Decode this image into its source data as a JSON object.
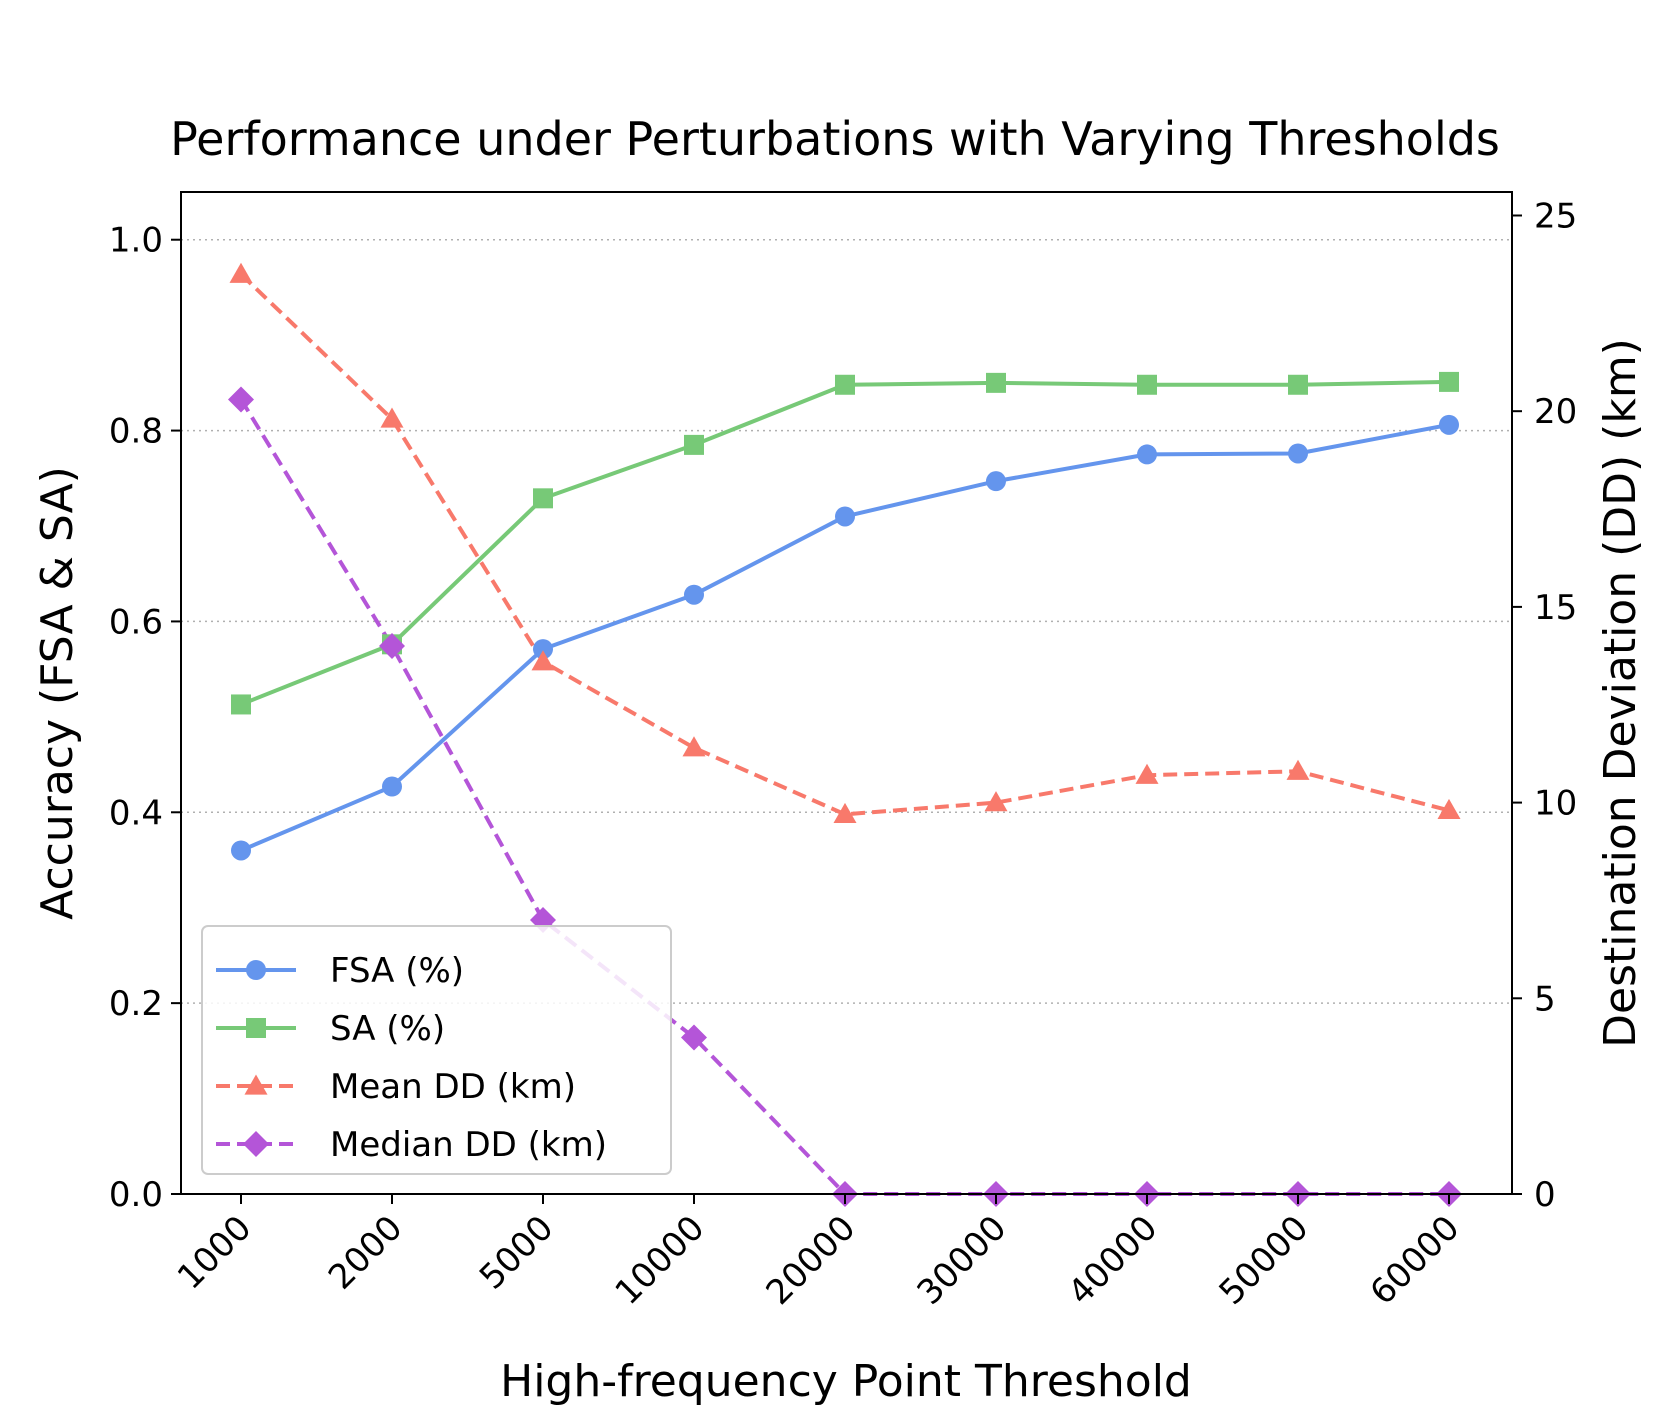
{
  "chart_data": {
    "type": "line",
    "title": "Performance under Perturbations with Varying Thresholds",
    "xlabel": "High-frequency Point Threshold",
    "ylabel_left": "Accuracy (FSA & SA)",
    "ylabel_right": "Destination Deviation (DD) (km)",
    "categories": [
      "1000",
      "2000",
      "5000",
      "10000",
      "20000",
      "30000",
      "40000",
      "50000",
      "60000"
    ],
    "ylim_left": [
      0,
      1.05
    ],
    "ylim_right": [
      0,
      25.6
    ],
    "yticks_left": [
      0.0,
      0.2,
      0.4,
      0.6,
      0.8,
      1.0
    ],
    "yticks_left_labels": [
      "0.0",
      "0.2",
      "0.4",
      "0.6",
      "0.8",
      "1.0"
    ],
    "yticks_right": [
      0,
      5,
      10,
      15,
      20,
      25
    ],
    "yticks_right_labels": [
      "0",
      "5",
      "10",
      "15",
      "20",
      "25"
    ],
    "grid": "horizontal dotted",
    "legend_position": "lower-left",
    "series": [
      {
        "name": "FSA (%)",
        "axis": "left",
        "color": "#6495ED",
        "marker": "circle",
        "linestyle": "solid",
        "values": [
          0.36,
          0.427,
          0.571,
          0.628,
          0.71,
          0.747,
          0.775,
          0.776,
          0.806
        ]
      },
      {
        "name": "SA (%)",
        "axis": "left",
        "color": "#77C977",
        "marker": "square",
        "linestyle": "solid",
        "values": [
          0.513,
          0.576,
          0.729,
          0.785,
          0.848,
          0.85,
          0.848,
          0.848,
          0.851
        ]
      },
      {
        "name": "Mean DD (km)",
        "axis": "right",
        "color": "#F8796B",
        "marker": "triangle",
        "linestyle": "dashed",
        "values": [
          23.5,
          19.8,
          13.6,
          11.4,
          9.7,
          10.0,
          10.7,
          10.8,
          9.8
        ]
      },
      {
        "name": "Median DD (km)",
        "axis": "right",
        "color": "#B455D8",
        "marker": "diamond",
        "linestyle": "dashed",
        "values": [
          20.3,
          14.0,
          7.0,
          4.0,
          0.0,
          0.0,
          0.0,
          0.0,
          0.0
        ]
      }
    ]
  }
}
